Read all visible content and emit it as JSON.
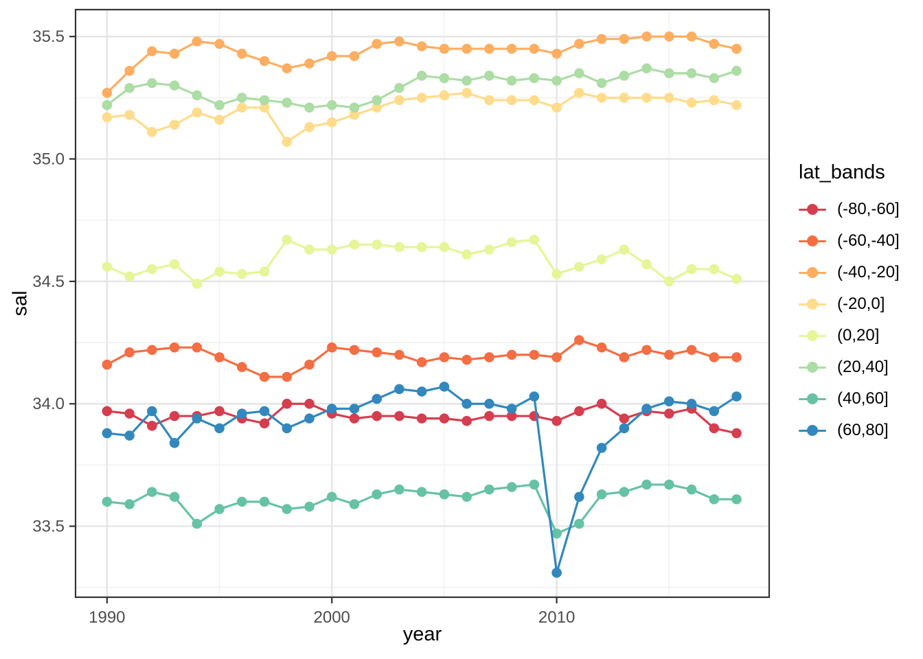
{
  "figure": {
    "background": "#ffffff"
  },
  "axes": {
    "x_title": "year",
    "y_title": "sal",
    "tick_color": "#4d4d4d",
    "axis_color": "#333333",
    "grid_major_color": "#e3e3e3",
    "grid_minor_color": "#f1f1f1"
  },
  "legend": {
    "title": "lat_bands",
    "entries": [
      {
        "label": "(-80,-60]",
        "color": "#d53e4f"
      },
      {
        "label": "(-60,-40]",
        "color": "#f46d43"
      },
      {
        "label": "(-40,-20]",
        "color": "#fdae61"
      },
      {
        "label": "(-20,0]",
        "color": "#fedc8b"
      },
      {
        "label": "(0,20]",
        "color": "#e6f598"
      },
      {
        "label": "(20,40]",
        "color": "#abdda4"
      },
      {
        "label": "(40,60]",
        "color": "#66c2a5"
      },
      {
        "label": "(60,80]",
        "color": "#3288bd"
      }
    ]
  },
  "chart_data": {
    "type": "line",
    "title": "",
    "xlabel": "year",
    "ylabel": "sal",
    "legend_title": "lat_bands",
    "legend_position": "right",
    "grid": true,
    "marker": "circle",
    "xlim": [
      1988.6,
      2019.45
    ],
    "ylim": [
      33.21,
      35.61
    ],
    "x_ticks": [
      1990,
      2000,
      2010
    ],
    "x_tick_labels": [
      "1990",
      "2000",
      "2010"
    ],
    "x_minor": [
      1995,
      2005,
      2015
    ],
    "y_ticks": [
      33.5,
      34.0,
      34.5,
      35.0,
      35.5
    ],
    "y_tick_labels": [
      "33.5",
      "34.0",
      "34.5",
      "35.0",
      "35.5"
    ],
    "y_minor": [
      33.25,
      33.75,
      34.25,
      34.75,
      35.25
    ],
    "x": [
      1990,
      1991,
      1992,
      1993,
      1994,
      1995,
      1996,
      1997,
      1998,
      1999,
      2000,
      2001,
      2002,
      2003,
      2004,
      2005,
      2006,
      2007,
      2008,
      2009,
      2010,
      2011,
      2012,
      2013,
      2014,
      2015,
      2016,
      2017,
      2018
    ],
    "series": [
      {
        "name": "(-80,-60]",
        "color": "#d53e4f",
        "values": [
          33.97,
          33.96,
          33.91,
          33.95,
          33.95,
          33.97,
          33.94,
          33.92,
          34.0,
          34.0,
          33.96,
          33.94,
          33.95,
          33.95,
          33.94,
          33.94,
          33.93,
          33.95,
          33.95,
          33.95,
          33.93,
          33.97,
          34.0,
          33.94,
          33.97,
          33.96,
          33.98,
          33.9,
          33.88
        ]
      },
      {
        "name": "(-60,-40]",
        "color": "#f46d43",
        "values": [
          34.16,
          34.21,
          34.22,
          34.23,
          34.23,
          34.19,
          34.15,
          34.11,
          34.11,
          34.16,
          34.23,
          34.22,
          34.21,
          34.2,
          34.17,
          34.19,
          34.18,
          34.19,
          34.2,
          34.2,
          34.19,
          34.26,
          34.23,
          34.19,
          34.22,
          34.2,
          34.22,
          34.19,
          34.19
        ]
      },
      {
        "name": "(-40,-20]",
        "color": "#fdae61",
        "values": [
          35.27,
          35.36,
          35.44,
          35.43,
          35.48,
          35.47,
          35.43,
          35.4,
          35.37,
          35.39,
          35.42,
          35.42,
          35.47,
          35.48,
          35.46,
          35.45,
          35.45,
          35.45,
          35.45,
          35.45,
          35.43,
          35.47,
          35.49,
          35.49,
          35.5,
          35.5,
          35.5,
          35.47,
          35.45
        ]
      },
      {
        "name": "(-20,0]",
        "color": "#fedc8b",
        "values": [
          35.17,
          35.18,
          35.11,
          35.14,
          35.19,
          35.16,
          35.21,
          35.21,
          35.07,
          35.13,
          35.15,
          35.18,
          35.21,
          35.24,
          35.25,
          35.26,
          35.27,
          35.24,
          35.24,
          35.24,
          35.21,
          35.27,
          35.25,
          35.25,
          35.25,
          35.25,
          35.23,
          35.24,
          35.22
        ]
      },
      {
        "name": "(0,20]",
        "color": "#e6f598",
        "values": [
          34.56,
          34.52,
          34.55,
          34.57,
          34.49,
          34.54,
          34.53,
          34.54,
          34.67,
          34.63,
          34.63,
          34.65,
          34.65,
          34.64,
          34.64,
          34.64,
          34.61,
          34.63,
          34.66,
          34.67,
          34.53,
          34.56,
          34.59,
          34.63,
          34.57,
          34.5,
          34.55,
          34.55,
          34.51
        ]
      },
      {
        "name": "(20,40]",
        "color": "#abdda4",
        "values": [
          35.22,
          35.29,
          35.31,
          35.3,
          35.26,
          35.22,
          35.25,
          35.24,
          35.23,
          35.21,
          35.22,
          35.21,
          35.24,
          35.29,
          35.34,
          35.33,
          35.32,
          35.34,
          35.32,
          35.33,
          35.32,
          35.35,
          35.31,
          35.34,
          35.37,
          35.35,
          35.35,
          35.33,
          35.36
        ]
      },
      {
        "name": "(40,60]",
        "color": "#66c2a5",
        "values": [
          33.6,
          33.59,
          33.64,
          33.62,
          33.51,
          33.57,
          33.6,
          33.6,
          33.57,
          33.58,
          33.62,
          33.59,
          33.63,
          33.65,
          33.64,
          33.63,
          33.62,
          33.65,
          33.66,
          33.67,
          33.47,
          33.51,
          33.63,
          33.64,
          33.67,
          33.67,
          33.65,
          33.61,
          33.61
        ]
      },
      {
        "name": "(60,80]",
        "color": "#3288bd",
        "values": [
          33.88,
          33.87,
          33.97,
          33.84,
          33.94,
          33.9,
          33.96,
          33.97,
          33.9,
          33.94,
          33.98,
          33.98,
          34.02,
          34.06,
          34.05,
          34.07,
          34.0,
          34.0,
          33.98,
          34.03,
          33.31,
          33.62,
          33.82,
          33.9,
          33.98,
          34.01,
          34.0,
          33.97,
          34.03
        ]
      }
    ]
  }
}
